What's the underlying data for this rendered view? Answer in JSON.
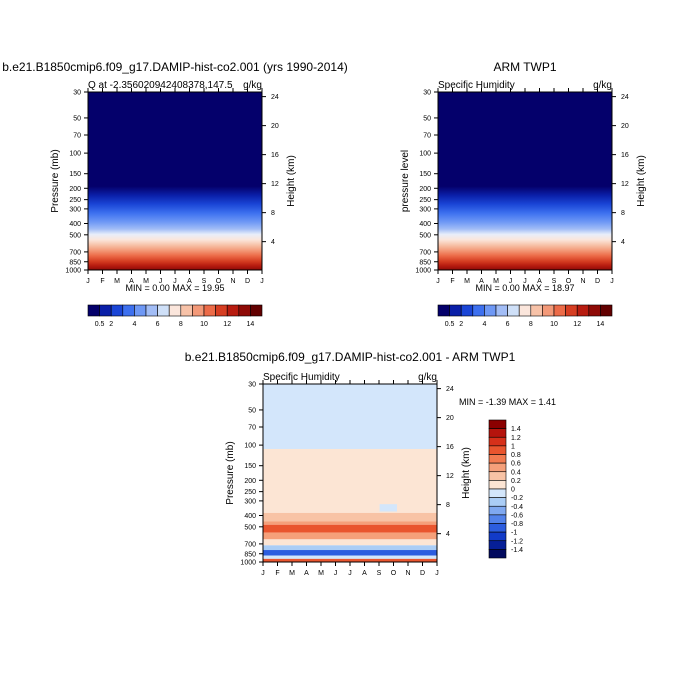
{
  "chart_data": [
    {
      "type": "heatmap",
      "title": "b.e21.B1850cmip6.f09_g17.DAMIP-hist-co2.001 (yrs 1990-2014)",
      "subtitle_left": "Q at -2.356020942408378,147.5",
      "subtitle_right": "g/kg",
      "ylabel": "Pressure (mb)",
      "y2label": "Height (km)",
      "xticks": [
        "J",
        "F",
        "M",
        "A",
        "M",
        "J",
        "J",
        "A",
        "S",
        "O",
        "N",
        "D",
        "J"
      ],
      "yticks": [
        "30",
        "50",
        "70",
        "100",
        "150",
        "200",
        "250",
        "300",
        "400",
        "500",
        "700",
        "850",
        "1000"
      ],
      "y2ticks": [
        "24",
        "20",
        "16",
        "12",
        "8",
        "4"
      ],
      "min_max": "MIN =   0.00 MAX =  19.95",
      "colorbar_labels": [
        "0.5",
        "2",
        "4",
        "6",
        "8",
        "10",
        "12",
        "14"
      ],
      "colorbar_colors": [
        "#04006b",
        "#0a1fa8",
        "#1a45d6",
        "#3d70ef",
        "#6e98f5",
        "#a2bdf6",
        "#cfe0f8",
        "#fbe6dc",
        "#f7c2a8",
        "#f39978",
        "#ec6b48",
        "#d63e22",
        "#b81c10",
        "#8e0a06",
        "#620000"
      ],
      "ylim": [
        30,
        1000
      ],
      "field": "humidity_climatology",
      "max_value": 19.95
    },
    {
      "type": "heatmap",
      "title": "ARM TWP1",
      "subtitle_left": "Specific Humidity",
      "subtitle_right": "g/kg",
      "ylabel": "pressure level",
      "y2label": "Height (km)",
      "xticks": [
        "J",
        "F",
        "M",
        "A",
        "M",
        "J",
        "J",
        "A",
        "S",
        "O",
        "N",
        "D",
        "J"
      ],
      "yticks": [
        "30",
        "50",
        "70",
        "100",
        "150",
        "200",
        "250",
        "300",
        "400",
        "500",
        "700",
        "850",
        "1000"
      ],
      "y2ticks": [
        "24",
        "20",
        "16",
        "12",
        "8",
        "4"
      ],
      "min_max": "MIN =   0.00 MAX =  18.97",
      "colorbar_labels": [
        "0.5",
        "2",
        "4",
        "6",
        "8",
        "10",
        "12",
        "14"
      ],
      "colorbar_colors": [
        "#04006b",
        "#0a1fa8",
        "#1a45d6",
        "#3d70ef",
        "#6e98f5",
        "#a2bdf6",
        "#cfe0f8",
        "#fbe6dc",
        "#f7c2a8",
        "#f39978",
        "#ec6b48",
        "#d63e22",
        "#b81c10",
        "#8e0a06",
        "#620000"
      ],
      "ylim": [
        30,
        1000
      ],
      "field": "humidity_climatology",
      "max_value": 18.97
    },
    {
      "type": "heatmap",
      "title": "b.e21.B1850cmip6.f09_g17.DAMIP-hist-co2.001 - ARM TWP1",
      "subtitle_left": "Specific Humidity",
      "subtitle_right": "g/kg",
      "ylabel": "Pressure (mb)",
      "y2label": "Height (km)",
      "xticks": [
        "J",
        "F",
        "M",
        "A",
        "M",
        "J",
        "J",
        "A",
        "S",
        "O",
        "N",
        "D",
        "J"
      ],
      "yticks": [
        "30",
        "50",
        "70",
        "100",
        "150",
        "200",
        "250",
        "300",
        "400",
        "500",
        "700",
        "850",
        "1000"
      ],
      "y2ticks": [
        "24",
        "20",
        "16",
        "12",
        "8",
        "4"
      ],
      "min_max": "MIN =  -1.39 MAX =   1.41",
      "colorbar_labels": [
        "1.4",
        "1.2",
        "1",
        "0.8",
        "0.6",
        "0.4",
        "0.2",
        "0",
        "-0.2",
        "-0.4",
        "-0.6",
        "-0.8",
        "-1",
        "-1.2",
        "-1.4"
      ],
      "colorbar_colors": [
        "#8b0000",
        "#b5140d",
        "#d6301a",
        "#e9552e",
        "#f27b50",
        "#f5a07a",
        "#f8c3a5",
        "#fce5d4",
        "#d3e6fb",
        "#aacdf6",
        "#7fa8f0",
        "#5282ea",
        "#2c5ddf",
        "#123bc8",
        "#061f97",
        "#020a5e"
      ],
      "ylim": [
        30,
        1000
      ],
      "field": "difference",
      "min_value": -1.39,
      "max_value": 1.41
    }
  ]
}
